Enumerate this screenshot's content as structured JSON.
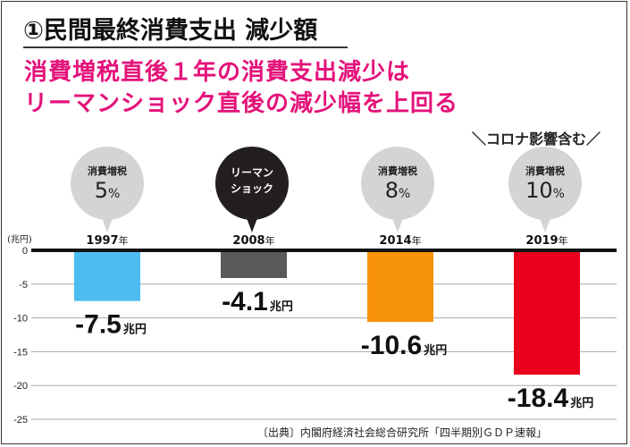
{
  "title": "①民間最終消費支出 減少額",
  "subtitle": {
    "line1": "消費増税直後１年の消費支出減少は",
    "line2": "リーマンショック直後の減少幅を上回る"
  },
  "annotation": "＼コロナ影響含む／",
  "bubbles": [
    {
      "line1": "消費増税",
      "value": "5",
      "pct": "%",
      "style": "grey"
    },
    {
      "line1": "リーマン",
      "line2": "ショック",
      "style": "black"
    },
    {
      "line1": "消費増税",
      "value": "8",
      "pct": "%",
      "style": "grey"
    },
    {
      "line1": "消費増税",
      "value": "10",
      "pct": "%",
      "style": "grey"
    }
  ],
  "years": [
    {
      "year": "1997",
      "suffix": "年"
    },
    {
      "year": "2008",
      "suffix": "年"
    },
    {
      "year": "2014",
      "suffix": "年"
    },
    {
      "year": "2019",
      "suffix": "年"
    }
  ],
  "unit_label": "(兆円)",
  "source": "〔出典〕内閣府経済社会総合研究所「四半期別ＧＤＰ速報」",
  "chart_data": {
    "type": "bar",
    "title": "①民間最終消費支出 減少額",
    "categories": [
      "1997年",
      "2008年",
      "2014年",
      "2019年"
    ],
    "values": [
      -7.5,
      -4.1,
      -10.6,
      -18.4
    ],
    "value_labels": [
      "-7.5",
      "-4.1",
      "-10.6",
      "-18.4"
    ],
    "value_unit": "兆円",
    "colors": [
      "#4dbdef",
      "#5a5a5a",
      "#f7920b",
      "#e8001c"
    ],
    "ylabel": "(兆円)",
    "xlabel": "",
    "ylim": [
      -25,
      0
    ],
    "yticks": [
      0,
      -5,
      -10,
      -15,
      -20,
      -25
    ],
    "ytick_labels": [
      "0",
      "-5",
      "-10",
      "-15",
      "-20",
      "-25"
    ],
    "grid": true,
    "axis_color": "#111111",
    "grid_color": "#aaaaaa"
  }
}
